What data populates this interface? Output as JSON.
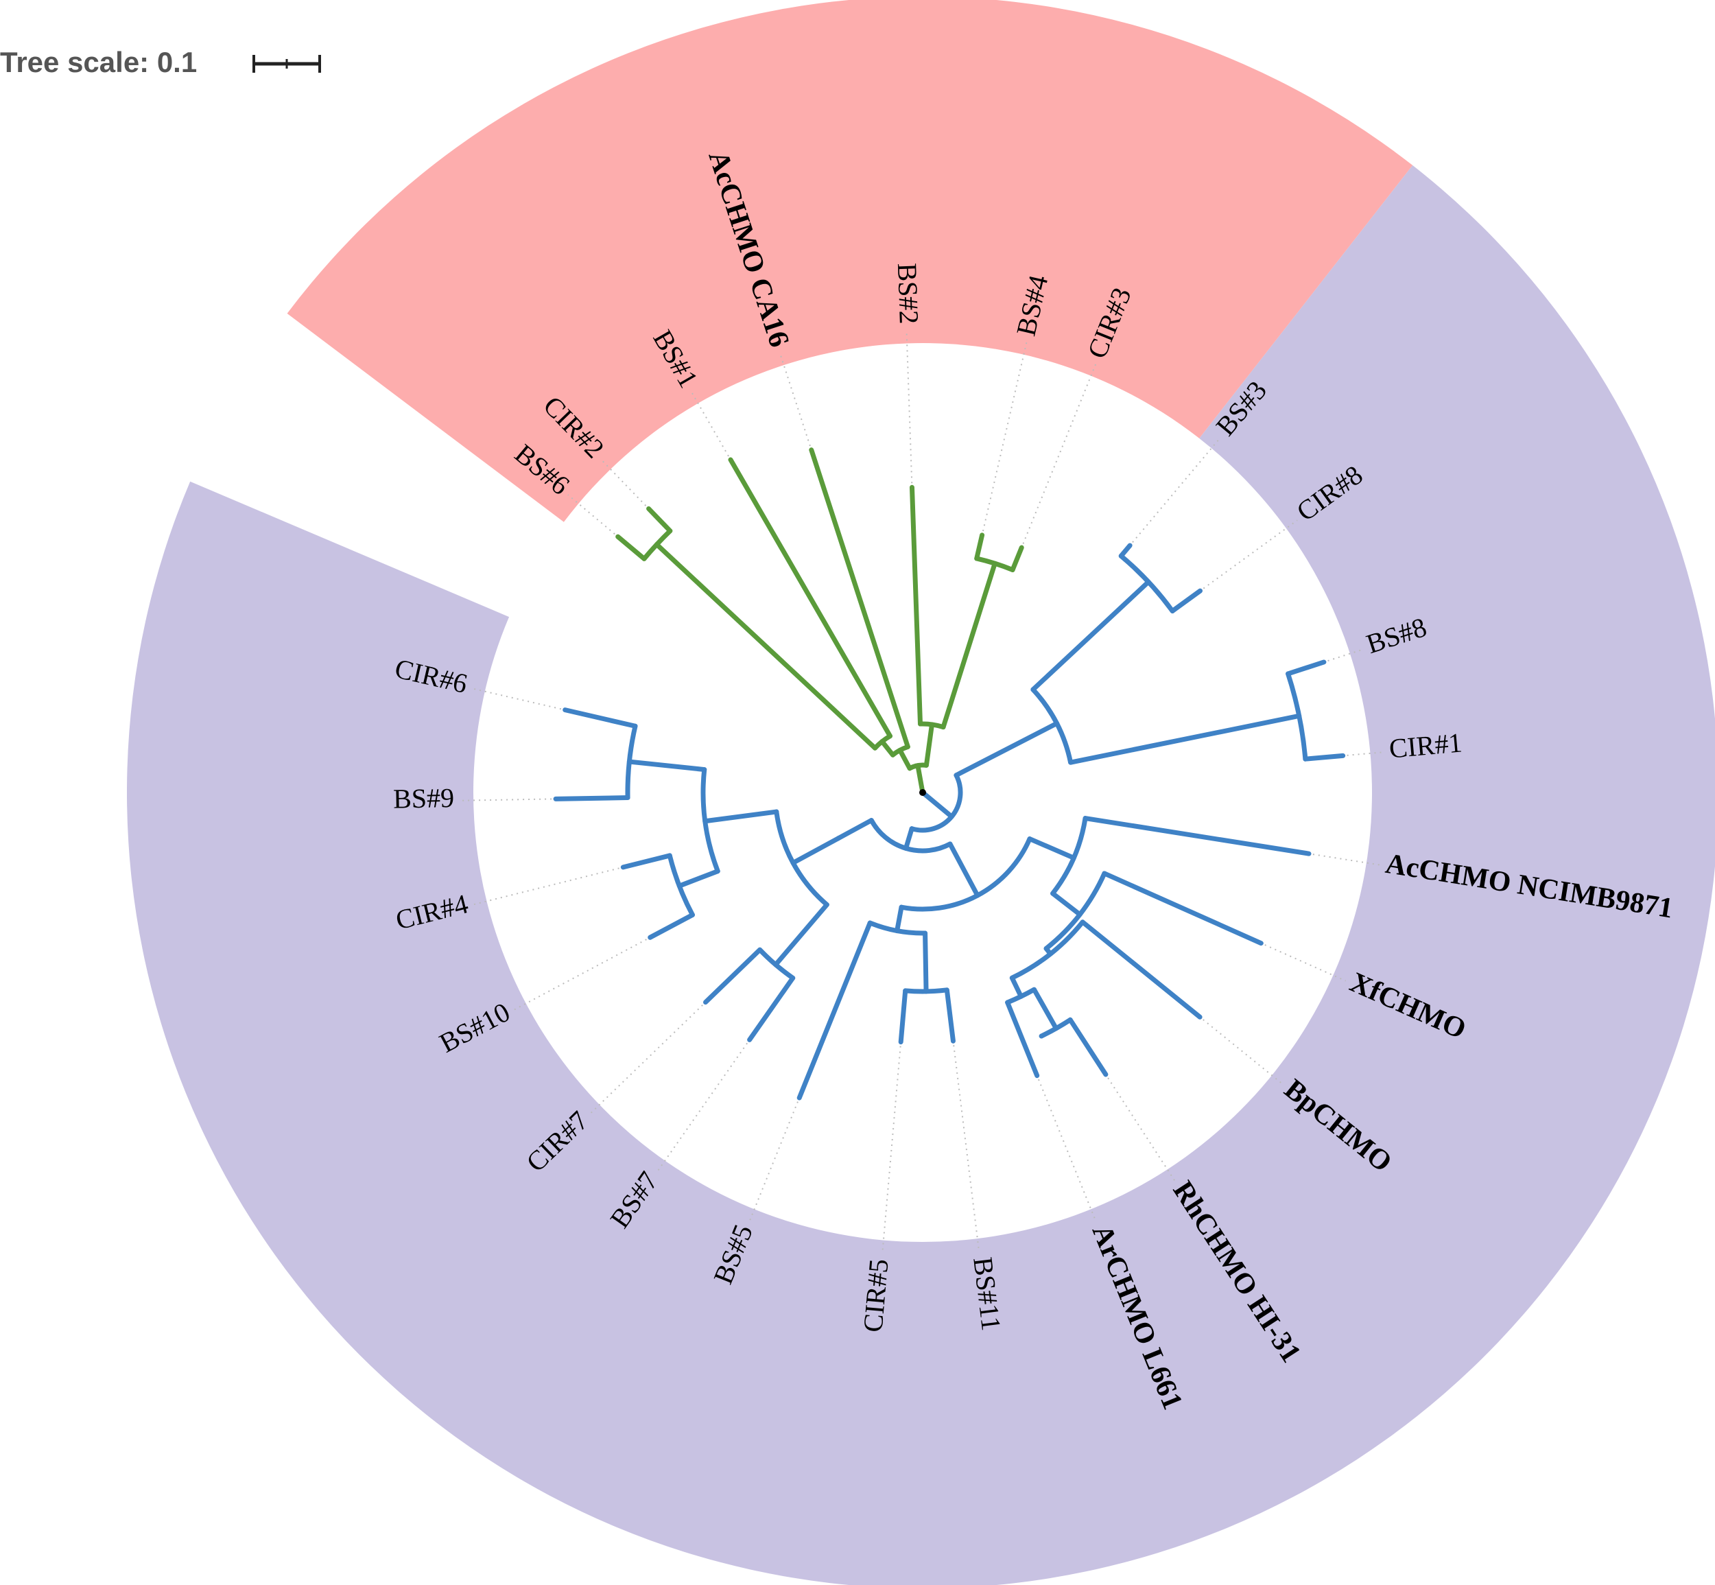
{
  "scale": {
    "label": "Tree scale: 0.1"
  },
  "colors": {
    "clade_a_ring": "#fdadad",
    "clade_b_ring": "#c8c2e2",
    "clade_a_branch": "#5a9b3a",
    "clade_b_branch": "#3f82c6",
    "text": "#000000",
    "scale_text": "#555555"
  },
  "leaves": [
    {
      "id": "bs6",
      "label": "BS#6",
      "clade": "A",
      "reference": false
    },
    {
      "id": "cir2",
      "label": "CIR#2",
      "clade": "A",
      "reference": false
    },
    {
      "id": "bs1",
      "label": "BS#1",
      "clade": "A",
      "reference": false
    },
    {
      "id": "acca16",
      "label": "AcCHMO CA16",
      "clade": "A",
      "reference": true
    },
    {
      "id": "bs2",
      "label": "BS#2",
      "clade": "A",
      "reference": false
    },
    {
      "id": "bs4",
      "label": "BS#4",
      "clade": "A",
      "reference": false
    },
    {
      "id": "cir3",
      "label": "CIR#3",
      "clade": "A",
      "reference": false
    },
    {
      "id": "bs3",
      "label": "BS#3",
      "clade": "B",
      "reference": false
    },
    {
      "id": "cir8",
      "label": "CIR#8",
      "clade": "B",
      "reference": false
    },
    {
      "id": "bs8",
      "label": "BS#8",
      "clade": "B",
      "reference": false
    },
    {
      "id": "cir1",
      "label": "CIR#1",
      "clade": "B",
      "reference": false
    },
    {
      "id": "acncimb",
      "label": "AcCHMO NCIMB9871",
      "clade": "B",
      "reference": true
    },
    {
      "id": "xf",
      "label": "XfCHMO",
      "clade": "B",
      "reference": true
    },
    {
      "id": "bp",
      "label": "BpCHMO",
      "clade": "B",
      "reference": true
    },
    {
      "id": "rh",
      "label": "RhCHMO HI-31",
      "clade": "B",
      "reference": true
    },
    {
      "id": "ar",
      "label": "ArCHMO L661",
      "clade": "B",
      "reference": true
    },
    {
      "id": "bs11",
      "label": "BS#11",
      "clade": "B",
      "reference": false
    },
    {
      "id": "cir5",
      "label": "CIR#5",
      "clade": "B",
      "reference": false
    },
    {
      "id": "bs5",
      "label": "BS#5",
      "clade": "B",
      "reference": false
    },
    {
      "id": "bs7",
      "label": "BS#7",
      "clade": "B",
      "reference": false
    },
    {
      "id": "cir7",
      "label": "CIR#7",
      "clade": "B",
      "reference": false
    },
    {
      "id": "bs10",
      "label": "BS#10",
      "clade": "B",
      "reference": false
    },
    {
      "id": "cir4",
      "label": "CIR#4",
      "clade": "B",
      "reference": false
    },
    {
      "id": "bs9",
      "label": "BS#9",
      "clade": "B",
      "reference": false
    },
    {
      "id": "cir6",
      "label": "CIR#6",
      "clade": "B",
      "reference": false
    }
  ]
}
